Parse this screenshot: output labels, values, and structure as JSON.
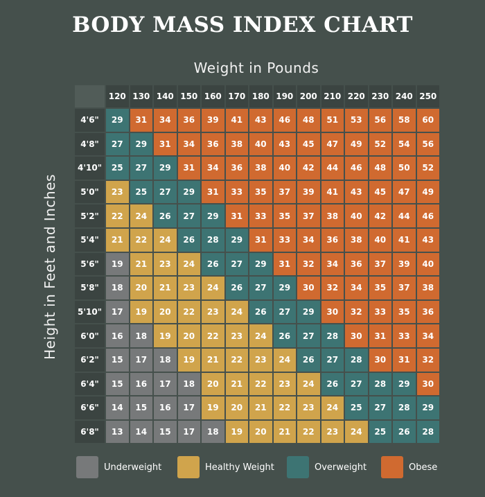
{
  "title": "BODY MASS INDEX CHART",
  "xlabel": "Weight in Pounds",
  "ylabel": "Height in Feet and Inches",
  "colors": {
    "underweight": "#77797a",
    "healthy": "#d0a44c",
    "overweight": "#3d7473",
    "obese": "#d06a30"
  },
  "chart_data": {
    "type": "heatmap",
    "title": "BODY MASS INDEX CHART",
    "xlabel": "Weight in Pounds",
    "ylabel": "Height in Feet and Inches",
    "x": [
      120,
      130,
      140,
      150,
      160,
      170,
      180,
      190,
      200,
      210,
      220,
      230,
      240,
      250
    ],
    "y": [
      "4'6\"",
      "4'8\"",
      "4'10\"",
      "5'0\"",
      "5'2\"",
      "5'4\"",
      "5'6\"",
      "5'8\"",
      "5'10\"",
      "6'0\"",
      "6'2\"",
      "6'4\"",
      "6'6\"",
      "6'8\""
    ],
    "values": [
      [
        29,
        31,
        34,
        36,
        39,
        41,
        43,
        46,
        48,
        51,
        53,
        56,
        58,
        60
      ],
      [
        27,
        29,
        31,
        34,
        36,
        38,
        40,
        43,
        45,
        47,
        49,
        52,
        54,
        56
      ],
      [
        25,
        27,
        29,
        31,
        34,
        36,
        38,
        40,
        42,
        44,
        46,
        48,
        50,
        52
      ],
      [
        23,
        25,
        27,
        29,
        31,
        33,
        35,
        37,
        39,
        41,
        43,
        45,
        47,
        49
      ],
      [
        22,
        24,
        26,
        27,
        29,
        31,
        33,
        35,
        37,
        38,
        40,
        42,
        44,
        46
      ],
      [
        21,
        22,
        24,
        26,
        28,
        29,
        31,
        33,
        34,
        36,
        38,
        40,
        41,
        43
      ],
      [
        19,
        21,
        23,
        24,
        26,
        27,
        29,
        31,
        32,
        34,
        36,
        37,
        39,
        40
      ],
      [
        18,
        20,
        21,
        23,
        24,
        26,
        27,
        29,
        30,
        32,
        34,
        35,
        37,
        38
      ],
      [
        17,
        19,
        20,
        22,
        23,
        24,
        26,
        27,
        29,
        30,
        32,
        33,
        35,
        36
      ],
      [
        16,
        18,
        19,
        20,
        22,
        23,
        24,
        26,
        27,
        28,
        30,
        31,
        33,
        34
      ],
      [
        15,
        17,
        18,
        19,
        21,
        22,
        23,
        24,
        26,
        27,
        28,
        30,
        31,
        32
      ],
      [
        15,
        16,
        17,
        18,
        20,
        21,
        22,
        23,
        24,
        26,
        27,
        28,
        29,
        30
      ],
      [
        14,
        15,
        16,
        17,
        19,
        20,
        21,
        22,
        23,
        24,
        25,
        27,
        28,
        29
      ],
      [
        13,
        14,
        15,
        17,
        18,
        19,
        20,
        21,
        22,
        23,
        24,
        25,
        26,
        28
      ]
    ],
    "categories": [
      "Underweight",
      "Healthy Weight",
      "Overweight",
      "Obese"
    ],
    "category_grid": [
      [
        "O",
        "H",
        "O",
        "O",
        "O",
        "O",
        "O",
        "O",
        "O",
        "O",
        "O",
        "O",
        "O",
        "O"
      ],
      [
        "O",
        "O",
        "O",
        "O",
        "O",
        "O",
        "O",
        "O",
        "O",
        "O",
        "O",
        "O",
        "O",
        "O"
      ],
      [
        "O",
        "O",
        "O",
        "O",
        "O",
        "O",
        "O",
        "O",
        "O",
        "O",
        "O",
        "O",
        "O",
        "O"
      ],
      [
        "H",
        "O",
        "O",
        "O",
        "O",
        "O",
        "O",
        "O",
        "O",
        "O",
        "O",
        "O",
        "O",
        "O"
      ],
      [
        "H",
        "H",
        "O",
        "O",
        "O",
        "O",
        "O",
        "O",
        "O",
        "O",
        "O",
        "O",
        "O",
        "O"
      ],
      [
        "H",
        "H",
        "H",
        "O",
        "O",
        "O",
        "O",
        "O",
        "O",
        "O",
        "O",
        "O",
        "O",
        "O"
      ],
      [
        "U",
        "H",
        "H",
        "H",
        "O",
        "O",
        "O",
        "O",
        "O",
        "O",
        "O",
        "O",
        "O",
        "O"
      ],
      [
        "U",
        "H",
        "H",
        "H",
        "H",
        "O",
        "O",
        "O",
        "O",
        "O",
        "O",
        "O",
        "O",
        "O"
      ],
      [
        "U",
        "H",
        "H",
        "H",
        "H",
        "H",
        "O",
        "O",
        "O",
        "O",
        "O",
        "O",
        "O",
        "O"
      ],
      [
        "U",
        "U",
        "H",
        "H",
        "H",
        "H",
        "H",
        "O",
        "O",
        "O",
        "O",
        "O",
        "O",
        "O"
      ],
      [
        "U",
        "U",
        "U",
        "H",
        "H",
        "H",
        "H",
        "H",
        "O",
        "O",
        "O",
        "O",
        "O",
        "O"
      ],
      [
        "U",
        "U",
        "U",
        "U",
        "H",
        "H",
        "H",
        "H",
        "H",
        "O",
        "O",
        "O",
        "O",
        "O"
      ],
      [
        "U",
        "U",
        "U",
        "U",
        "H",
        "H",
        "H",
        "H",
        "H",
        "H",
        "O",
        "O",
        "O",
        "O"
      ],
      [
        "U",
        "U",
        "U",
        "U",
        "U",
        "H",
        "H",
        "H",
        "H",
        "H",
        "H",
        "O",
        "O",
        "O"
      ]
    ]
  },
  "legend": [
    {
      "label": "Underweight",
      "key": "U"
    },
    {
      "label": "Healthy Weight",
      "key": "H"
    },
    {
      "label": "Overweight",
      "key": "V"
    },
    {
      "label": "Obese",
      "key": "O"
    }
  ]
}
